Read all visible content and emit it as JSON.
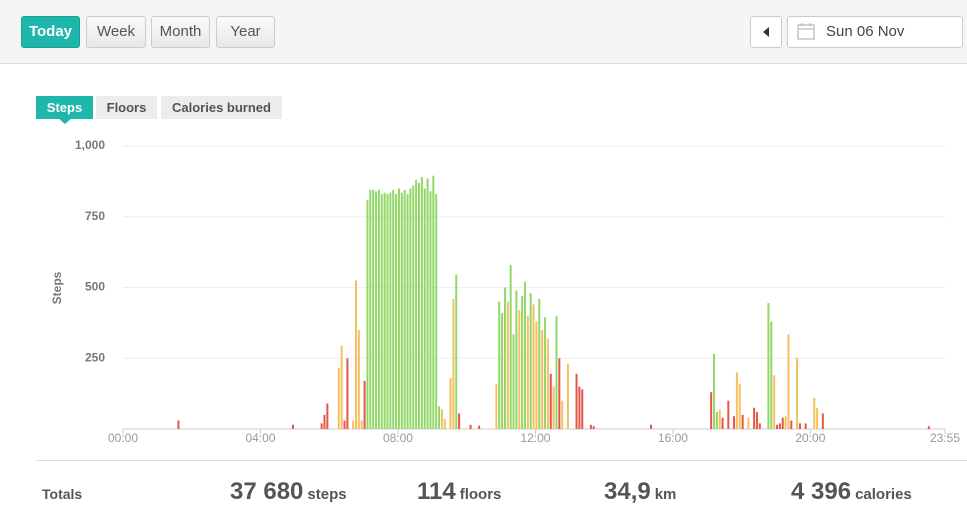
{
  "period_tabs": [
    "Today",
    "Week",
    "Month",
    "Year"
  ],
  "date": "Sun 06 Nov",
  "metric_tabs": [
    "Steps",
    "Floors",
    "Calories burned"
  ],
  "chart_data": {
    "type": "bar",
    "y_label": "Steps",
    "x": [
      95,
      295,
      345,
      350,
      355,
      375,
      380,
      385,
      390,
      400,
      405,
      410,
      415,
      420,
      425,
      430,
      435,
      440,
      445,
      450,
      455,
      460,
      465,
      470,
      475,
      480,
      485,
      490,
      495,
      500,
      505,
      510,
      515,
      520,
      525,
      530,
      535,
      540,
      545,
      550,
      555,
      560,
      570,
      575,
      580,
      585,
      605,
      620,
      650,
      655,
      660,
      665,
      670,
      675,
      680,
      685,
      690,
      695,
      700,
      705,
      710,
      715,
      720,
      725,
      730,
      735,
      740,
      745,
      750,
      755,
      760,
      765,
      775,
      790,
      795,
      800,
      815,
      820,
      920,
      1025,
      1030,
      1035,
      1040,
      1045,
      1055,
      1065,
      1070,
      1075,
      1080,
      1090,
      1100,
      1105,
      1110,
      1125,
      1130,
      1135,
      1140,
      1145,
      1150,
      1155,
      1160,
      1165,
      1175,
      1180,
      1190,
      1205,
      1210,
      1220,
      1405
    ],
    "values": [
      30,
      15,
      20,
      50,
      90,
      215,
      295,
      30,
      250,
      30,
      525,
      350,
      30,
      170,
      810,
      845,
      845,
      840,
      845,
      830,
      835,
      830,
      835,
      845,
      830,
      850,
      835,
      845,
      830,
      850,
      860,
      880,
      870,
      890,
      850,
      885,
      840,
      895,
      830,
      80,
      70,
      35,
      180,
      460,
      545,
      55,
      15,
      12,
      160,
      450,
      410,
      500,
      450,
      580,
      335,
      490,
      420,
      470,
      520,
      400,
      480,
      440,
      380,
      460,
      350,
      395,
      320,
      195,
      150,
      400,
      250,
      100,
      230,
      195,
      150,
      140,
      15,
      10,
      15,
      130,
      265,
      60,
      70,
      40,
      100,
      45,
      200,
      160,
      50,
      40,
      75,
      60,
      20,
      445,
      380,
      190,
      15,
      20,
      40,
      45,
      335,
      30,
      250,
      20,
      20,
      110,
      75,
      55,
      10
    ],
    "colors": [
      "#e4564a",
      "#e4564a",
      "#e4564a",
      "#e4564a",
      "#e4564a",
      "#f6c061",
      "#f6c061",
      "#e4564a",
      "#e4564a",
      "#f6c061",
      "#f6c061",
      "#f6c061",
      "#f6c061",
      "#e4564a",
      "#92d768",
      "#92d768",
      "#92d768",
      "#92d768",
      "#92d768",
      "#92d768",
      "#92d768",
      "#92d768",
      "#92d768",
      "#92d768",
      "#92d768",
      "#92d768",
      "#92d768",
      "#92d768",
      "#92d768",
      "#92d768",
      "#92d768",
      "#92d768",
      "#92d768",
      "#92d768",
      "#92d768",
      "#92d768",
      "#92d768",
      "#92d768",
      "#92d768",
      "#92d768",
      "#f6c061",
      "#f6c061",
      "#f6c061",
      "#f6c061",
      "#92d768",
      "#e4564a",
      "#e4564a",
      "#e4564a",
      "#f6c061",
      "#92d768",
      "#92d768",
      "#92d768",
      "#f6c061",
      "#92d768",
      "#92d768",
      "#92d768",
      "#f6c061",
      "#92d768",
      "#92d768",
      "#f6c061",
      "#92d768",
      "#f6c061",
      "#f6c061",
      "#92d768",
      "#f6c061",
      "#92d768",
      "#f6c061",
      "#e4564a",
      "#f6c061",
      "#92d768",
      "#e4564a",
      "#f6c061",
      "#f6c061",
      "#e4564a",
      "#e4564a",
      "#e4564a",
      "#e4564a",
      "#e4564a",
      "#e4564a",
      "#e4564a",
      "#92d768",
      "#92d768",
      "#f6c061",
      "#e4564a",
      "#e4564a",
      "#e4564a",
      "#f6c061",
      "#f6c061",
      "#e4564a",
      "#f6c061",
      "#e4564a",
      "#e4564a",
      "#e4564a",
      "#92d768",
      "#92d768",
      "#f6c061",
      "#e4564a",
      "#e4564a",
      "#e4564a",
      "#f6c061",
      "#f6c061",
      "#e4564a",
      "#f6c061",
      "#e4564a",
      "#e4564a",
      "#f6c061",
      "#f6c061",
      "#e4564a",
      "#e4564a"
    ],
    "xlim": [
      0,
      1435
    ],
    "xticks": [
      {
        "value": 0,
        "label": "00:00"
      },
      {
        "value": 240,
        "label": "04:00"
      },
      {
        "value": 480,
        "label": "08:00"
      },
      {
        "value": 720,
        "label": "12:00"
      },
      {
        "value": 960,
        "label": "16:00"
      },
      {
        "value": 1200,
        "label": "20:00"
      },
      {
        "value": 1435,
        "label": "23:55"
      }
    ],
    "ylim": [
      0,
      1000
    ],
    "yticks": [
      250,
      500,
      750,
      {
        "value": 1000,
        "label": "1,000"
      }
    ],
    "grid": true
  },
  "totals": {
    "label": "Totals",
    "items": [
      {
        "value": "37 680",
        "unit": "steps"
      },
      {
        "value": "114",
        "unit": "floors"
      },
      {
        "value": "34,9",
        "unit": "km"
      },
      {
        "value": "4 396",
        "unit": "calories"
      }
    ]
  }
}
